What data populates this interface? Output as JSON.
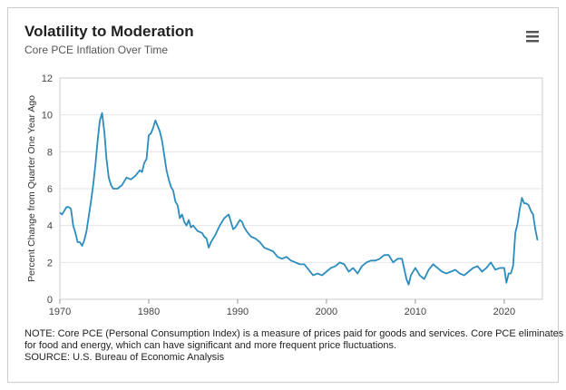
{
  "chart_data": {
    "type": "line",
    "title": "Volatility to Moderation",
    "subtitle": "Core PCE Inflation Over Time",
    "y_label": "Percent Change from Quarter One Year Ago",
    "notes": [
      "NOTE: Core PCE (Personal Consumption Index) is a measure of prices paid for goods and services. Core PCE eliminates prices",
      "for food and energy, which can have significant and more frequent price fluctuations.",
      "SOURCE: U.S. Bureau of Economic Analysis"
    ],
    "xlim": [
      1970,
      2024.3
    ],
    "xticks": [
      1970,
      1980,
      1990,
      2000,
      2010,
      2020
    ],
    "ylim": [
      0,
      12
    ],
    "yticks": [
      0,
      2,
      4,
      6,
      8,
      10,
      12
    ],
    "grid": true,
    "x": [
      1970,
      1970.25,
      1970.5,
      1970.75,
      1971,
      1971.25,
      1971.5,
      1971.75,
      1972,
      1972.25,
      1972.5,
      1972.75,
      1973,
      1973.25,
      1973.5,
      1973.75,
      1974,
      1974.25,
      1974.5,
      1974.75,
      1975,
      1975.25,
      1975.5,
      1975.75,
      1976,
      1976.5,
      1977,
      1977.5,
      1978,
      1978.5,
      1979,
      1979.25,
      1979.5,
      1979.75,
      1980,
      1980.25,
      1980.5,
      1980.75,
      1981,
      1981.25,
      1981.5,
      1981.75,
      1982,
      1982.25,
      1982.5,
      1982.75,
      1983,
      1983.25,
      1983.5,
      1983.75,
      1984,
      1984.25,
      1984.5,
      1984.75,
      1985,
      1985.5,
      1986,
      1986.25,
      1986.5,
      1986.75,
      1987,
      1987.5,
      1988,
      1988.5,
      1989,
      1989.25,
      1989.5,
      1989.75,
      1990,
      1990.25,
      1990.5,
      1990.75,
      1991,
      1991.5,
      1992,
      1992.5,
      1993,
      1993.5,
      1994,
      1994.5,
      1995,
      1995.5,
      1996,
      1996.5,
      1997,
      1997.5,
      1998,
      1998.5,
      1999,
      1999.5,
      2000,
      2000.5,
      2001,
      2001.5,
      2002,
      2002.5,
      2003,
      2003.5,
      2004,
      2004.5,
      2005,
      2005.5,
      2006,
      2006.5,
      2007,
      2007.5,
      2008,
      2008.5,
      2009,
      2009.25,
      2009.5,
      2010,
      2010.5,
      2011,
      2011.5,
      2012,
      2012.5,
      2013,
      2013.5,
      2014,
      2014.5,
      2015,
      2015.5,
      2016,
      2016.5,
      2017,
      2017.5,
      2018,
      2018.5,
      2019,
      2019.5,
      2020,
      2020.25,
      2020.5,
      2020.75,
      2021,
      2021.25,
      2021.5,
      2021.75,
      2022,
      2022.25,
      2022.5,
      2022.75,
      2023,
      2023.25,
      2023.5,
      2023.75
    ],
    "series": [
      {
        "name": "Core PCE",
        "color": "#2b8cbe",
        "values": [
          4.7,
          4.6,
          4.8,
          5.0,
          5.0,
          4.9,
          4.0,
          3.6,
          3.1,
          3.1,
          2.9,
          3.2,
          3.7,
          4.5,
          5.3,
          6.2,
          7.3,
          8.6,
          9.7,
          10.1,
          9.1,
          7.6,
          6.6,
          6.2,
          6.0,
          6.0,
          6.2,
          6.6,
          6.5,
          6.7,
          7.0,
          6.9,
          7.4,
          7.6,
          8.9,
          9.0,
          9.3,
          9.7,
          9.4,
          9.1,
          8.6,
          7.8,
          7.0,
          6.5,
          6.1,
          5.9,
          5.3,
          5.1,
          4.4,
          4.6,
          4.2,
          4.0,
          4.3,
          3.9,
          4.0,
          3.7,
          3.6,
          3.4,
          3.3,
          2.8,
          3.1,
          3.5,
          4.0,
          4.4,
          4.6,
          4.2,
          3.8,
          3.9,
          4.1,
          4.3,
          4.2,
          3.9,
          3.7,
          3.4,
          3.3,
          3.1,
          2.8,
          2.7,
          2.6,
          2.3,
          2.2,
          2.3,
          2.1,
          2.0,
          1.9,
          1.9,
          1.6,
          1.3,
          1.4,
          1.3,
          1.5,
          1.7,
          1.8,
          2.0,
          1.9,
          1.5,
          1.7,
          1.4,
          1.8,
          2.0,
          2.1,
          2.1,
          2.2,
          2.4,
          2.4,
          2.0,
          2.2,
          2.2,
          1.1,
          0.8,
          1.3,
          1.7,
          1.3,
          1.1,
          1.6,
          1.9,
          1.7,
          1.5,
          1.4,
          1.5,
          1.6,
          1.4,
          1.3,
          1.5,
          1.7,
          1.8,
          1.5,
          1.7,
          2.0,
          1.6,
          1.7,
          1.7,
          0.9,
          1.4,
          1.4,
          1.8,
          3.6,
          4.1,
          4.9,
          5.5,
          5.2,
          5.2,
          5.1,
          4.8,
          4.6,
          3.8,
          3.2
        ]
      }
    ]
  }
}
